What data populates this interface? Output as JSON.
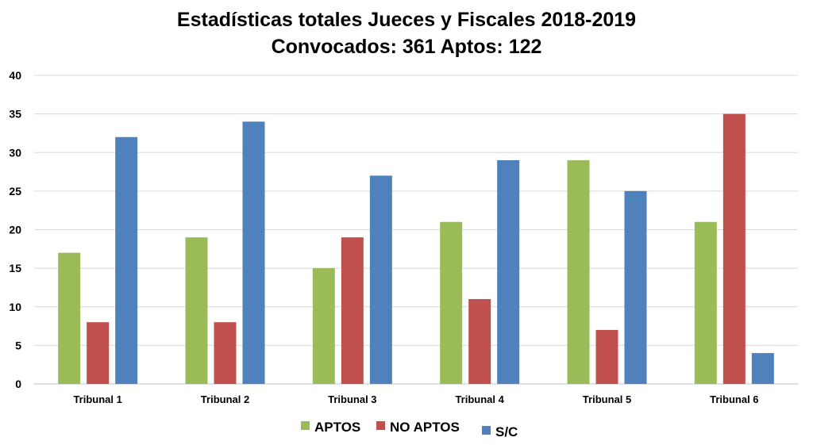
{
  "chart_data": {
    "type": "bar",
    "title": "Estadísticas totales Jueces y Fiscales 2018-2019",
    "subtitle": "Convocados: 361 Aptos: 122",
    "categories": [
      "Tribunal 1",
      "Tribunal 2",
      "Tribunal 3",
      "Tribunal 4",
      "Tribunal 5",
      "Tribunal 6"
    ],
    "series": [
      {
        "name": "APTOS",
        "color": "#9BBB59",
        "values": [
          17,
          19,
          15,
          21,
          29,
          21
        ]
      },
      {
        "name": "NO APTOS",
        "color": "#C0504D",
        "values": [
          8,
          8,
          19,
          11,
          7,
          35
        ]
      },
      {
        "name": "S/C",
        "color": "#4F81BD",
        "values": [
          32,
          34,
          27,
          29,
          25,
          4
        ]
      }
    ],
    "ylim": [
      0,
      40
    ],
    "yticks": [
      0,
      5,
      10,
      15,
      20,
      25,
      30,
      35,
      40
    ],
    "grid": true,
    "legend": "bottom"
  }
}
